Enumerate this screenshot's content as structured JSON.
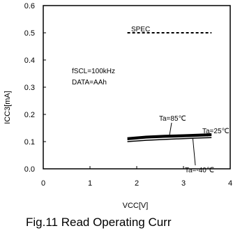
{
  "chart_data": {
    "type": "line",
    "caption": "Fig.11 Read Operating Curr",
    "xlabel": "VCC[V]",
    "ylabel": "ICC3[mA]",
    "xlim": [
      0,
      4
    ],
    "ylim": [
      0,
      0.6
    ],
    "xticks": [
      0,
      1,
      2,
      3,
      4
    ],
    "yticks": [
      0,
      0.1,
      0.2,
      0.3,
      0.4,
      0.5,
      0.6
    ],
    "grid": false,
    "conditions": [
      "fSCL=100kHz",
      "DATA=AAh"
    ],
    "spec": {
      "label": "SPEC",
      "y": 0.5,
      "x": [
        1.8,
        3.6
      ]
    },
    "series": [
      {
        "name": "Ta=85℃",
        "x": [
          1.8,
          2.2,
          2.6,
          3.0,
          3.3,
          3.6
        ],
        "y": [
          0.112,
          0.118,
          0.121,
          0.123,
          0.125,
          0.127
        ]
      },
      {
        "name": "Ta=25℃",
        "x": [
          1.8,
          2.2,
          2.6,
          3.0,
          3.3,
          3.6
        ],
        "y": [
          0.107,
          0.113,
          0.116,
          0.118,
          0.12,
          0.122
        ]
      },
      {
        "name": "Ta=-40℃",
        "x": [
          1.8,
          2.2,
          2.6,
          3.0,
          3.3,
          3.6
        ],
        "y": [
          0.1,
          0.105,
          0.108,
          0.111,
          0.113,
          0.115
        ]
      }
    ]
  }
}
